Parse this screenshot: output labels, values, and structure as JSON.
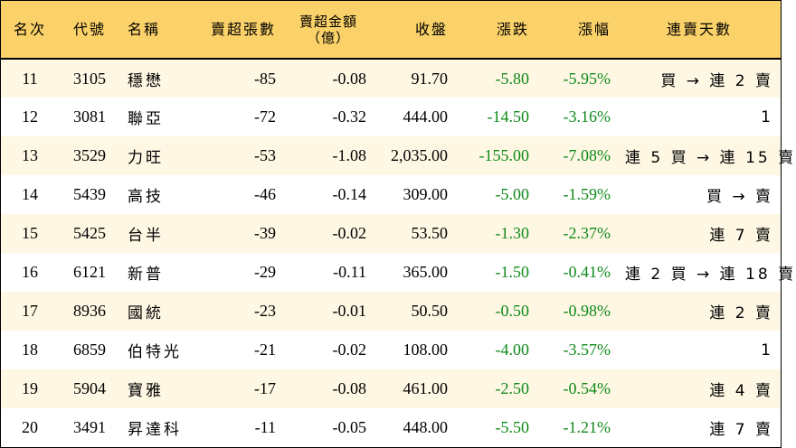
{
  "headers": {
    "rank": "名次",
    "code": "代號",
    "name": "名稱",
    "net_sell_lots": "賣超張數",
    "net_sell_amount": "賣超金額",
    "net_sell_amount_unit": "（億）",
    "close": "收盤",
    "change": "漲跌",
    "change_pct": "漲幅",
    "streak": "連賣天數"
  },
  "colors": {
    "header_bg": "#fbd269",
    "stripe_bg": "#fef7e3",
    "negative_text": "#0f8a1a"
  },
  "rows": [
    {
      "rank": "11",
      "code": "3105",
      "name": "穩懋",
      "lots": "-85",
      "amount": "-0.08",
      "close": "91.70",
      "change": "-5.80",
      "pct": "-5.95%",
      "streak": "買 → 連 2 賣"
    },
    {
      "rank": "12",
      "code": "3081",
      "name": "聯亞",
      "lots": "-72",
      "amount": "-0.32",
      "close": "444.00",
      "change": "-14.50",
      "pct": "-3.16%",
      "streak": "1"
    },
    {
      "rank": "13",
      "code": "3529",
      "name": "力旺",
      "lots": "-53",
      "amount": "-1.08",
      "close": "2,035.00",
      "change": "-155.00",
      "pct": "-7.08%",
      "streak": "連 5 買 → 連 15 賣"
    },
    {
      "rank": "14",
      "code": "5439",
      "name": "高技",
      "lots": "-46",
      "amount": "-0.14",
      "close": "309.00",
      "change": "-5.00",
      "pct": "-1.59%",
      "streak": "買 → 賣"
    },
    {
      "rank": "15",
      "code": "5425",
      "name": "台半",
      "lots": "-39",
      "amount": "-0.02",
      "close": "53.50",
      "change": "-1.30",
      "pct": "-2.37%",
      "streak": "連 7 賣"
    },
    {
      "rank": "16",
      "code": "6121",
      "name": "新普",
      "lots": "-29",
      "amount": "-0.11",
      "close": "365.00",
      "change": "-1.50",
      "pct": "-0.41%",
      "streak": "連 2 買 → 連 18 賣"
    },
    {
      "rank": "17",
      "code": "8936",
      "name": "國統",
      "lots": "-23",
      "amount": "-0.01",
      "close": "50.50",
      "change": "-0.50",
      "pct": "-0.98%",
      "streak": "連 2 賣"
    },
    {
      "rank": "18",
      "code": "6859",
      "name": "伯特光",
      "lots": "-21",
      "amount": "-0.02",
      "close": "108.00",
      "change": "-4.00",
      "pct": "-3.57%",
      "streak": "1"
    },
    {
      "rank": "19",
      "code": "5904",
      "name": "寶雅",
      "lots": "-17",
      "amount": "-0.08",
      "close": "461.00",
      "change": "-2.50",
      "pct": "-0.54%",
      "streak": "連 4 賣"
    },
    {
      "rank": "20",
      "code": "3491",
      "name": "昇達科",
      "lots": "-11",
      "amount": "-0.05",
      "close": "448.00",
      "change": "-5.50",
      "pct": "-1.21%",
      "streak": "連 7 賣"
    }
  ]
}
